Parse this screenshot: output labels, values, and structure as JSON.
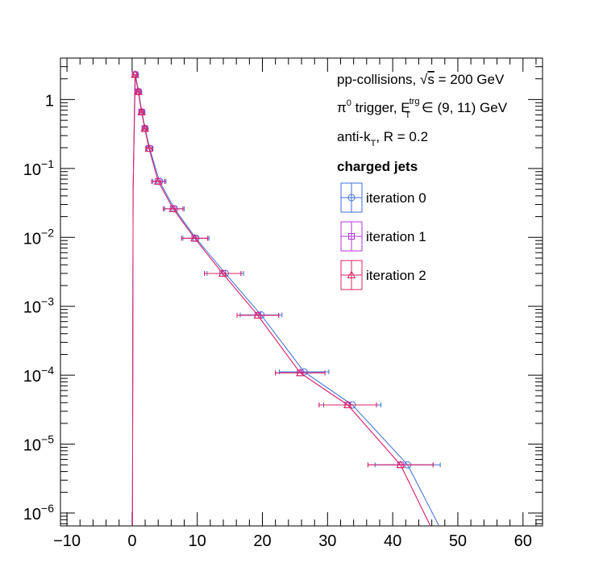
{
  "chart_data": {
    "type": "scatter",
    "x_axis": {
      "min": -11,
      "max": 63,
      "major_ticks": [
        -10,
        0,
        10,
        20,
        30,
        40,
        50,
        60
      ],
      "scale": "linear"
    },
    "y_axis": {
      "min": 6.5e-07,
      "max": 4.0,
      "scale": "log",
      "tick_labels": [
        {
          "value": 1,
          "mantissa": "1",
          "exp": ""
        },
        {
          "value": 0.1,
          "mantissa": "10",
          "exp": "−1"
        },
        {
          "value": 0.01,
          "mantissa": "10",
          "exp": "−2"
        },
        {
          "value": 0.001,
          "mantissa": "10",
          "exp": "−3"
        },
        {
          "value": 0.0001,
          "mantissa": "10",
          "exp": "−4"
        },
        {
          "value": 1e-05,
          "mantissa": "10",
          "exp": "−5"
        },
        {
          "value": 1e-06,
          "mantissa": "10",
          "exp": "−6"
        }
      ]
    },
    "annotations": {
      "line1_main": "pp-collisions, ",
      "line1_sqrt": "√",
      "line1_s": "s",
      "line1_rest": " = 200 GeV",
      "line2_pi": "π",
      "line2_pi_sup": "0",
      "line2_mid": " trigger, E",
      "line2_sup": "trg",
      "line2_sub": "T",
      "line2_rest": " ∈ (9, 11) GeV",
      "line3_main": "anti-k",
      "line3_sub": "T",
      "line3_rest": ", R = 0.2",
      "legend_header": "charged jets"
    },
    "legend_position": "top-right",
    "series": [
      {
        "name": "iteration 0",
        "color": "#3a6fd8",
        "marker": "circle",
        "points": [
          {
            "x": 0.5,
            "y": 2.3,
            "xerr": 0.25
          },
          {
            "x": 1.0,
            "y": 1.3,
            "xerr": 0.25
          },
          {
            "x": 1.5,
            "y": 0.66,
            "xerr": 0.25
          },
          {
            "x": 2.0,
            "y": 0.38,
            "xerr": 0.25
          },
          {
            "x": 2.7,
            "y": 0.195,
            "xerr": 0.5
          },
          {
            "x": 4.2,
            "y": 0.065,
            "xerr": 1.0
          },
          {
            "x": 6.5,
            "y": 0.026,
            "xerr": 1.5
          },
          {
            "x": 9.8,
            "y": 0.0097,
            "xerr": 2.0
          },
          {
            "x": 14.3,
            "y": 0.003,
            "xerr": 2.8
          },
          {
            "x": 19.8,
            "y": 0.00075,
            "xerr": 3.2
          },
          {
            "x": 26.4,
            "y": 0.000112,
            "xerr": 3.8
          },
          {
            "x": 33.8,
            "y": 3.7e-05,
            "xerr": 4.4
          },
          {
            "x": 42.3,
            "y": 5e-06,
            "xerr": 5.0
          }
        ]
      },
      {
        "name": "iteration 1",
        "color": "#b034d8",
        "marker": "square",
        "points": [
          {
            "x": 0.45,
            "y": 2.3,
            "xerr": 0.25
          },
          {
            "x": 0.95,
            "y": 1.3,
            "xerr": 0.25
          },
          {
            "x": 1.45,
            "y": 0.66,
            "xerr": 0.25
          },
          {
            "x": 1.95,
            "y": 0.38,
            "xerr": 0.25
          },
          {
            "x": 2.6,
            "y": 0.195,
            "xerr": 0.5
          },
          {
            "x": 4.0,
            "y": 0.065,
            "xerr": 1.0
          },
          {
            "x": 6.3,
            "y": 0.026,
            "xerr": 1.5
          },
          {
            "x": 9.6,
            "y": 0.0097,
            "xerr": 2.0
          },
          {
            "x": 13.9,
            "y": 0.003,
            "xerr": 2.8
          },
          {
            "x": 19.3,
            "y": 0.00074,
            "xerr": 3.2
          },
          {
            "x": 25.8,
            "y": 0.000108,
            "xerr": 3.8
          },
          {
            "x": 33.1,
            "y": 3.7e-05,
            "xerr": 4.4
          },
          {
            "x": 41.2,
            "y": 5e-06,
            "xerr": 5.0
          }
        ]
      },
      {
        "name": "iteration 2",
        "color": "#e0245e",
        "marker": "triangle",
        "points": [
          {
            "x": 0.45,
            "y": 2.3,
            "xerr": 0.25
          },
          {
            "x": 0.95,
            "y": 1.3,
            "xerr": 0.25
          },
          {
            "x": 1.45,
            "y": 0.66,
            "xerr": 0.25
          },
          {
            "x": 1.95,
            "y": 0.38,
            "xerr": 0.25
          },
          {
            "x": 2.6,
            "y": 0.195,
            "xerr": 0.5
          },
          {
            "x": 4.0,
            "y": 0.065,
            "xerr": 1.0
          },
          {
            "x": 6.3,
            "y": 0.026,
            "xerr": 1.5
          },
          {
            "x": 9.6,
            "y": 0.0097,
            "xerr": 2.0
          },
          {
            "x": 13.9,
            "y": 0.003,
            "xerr": 2.8
          },
          {
            "x": 19.3,
            "y": 0.00074,
            "xerr": 3.2
          },
          {
            "x": 25.8,
            "y": 0.000108,
            "xerr": 3.8
          },
          {
            "x": 33.1,
            "y": 3.7e-05,
            "xerr": 4.4
          },
          {
            "x": 41.2,
            "y": 5e-06,
            "xerr": 5.0
          }
        ]
      }
    ]
  }
}
